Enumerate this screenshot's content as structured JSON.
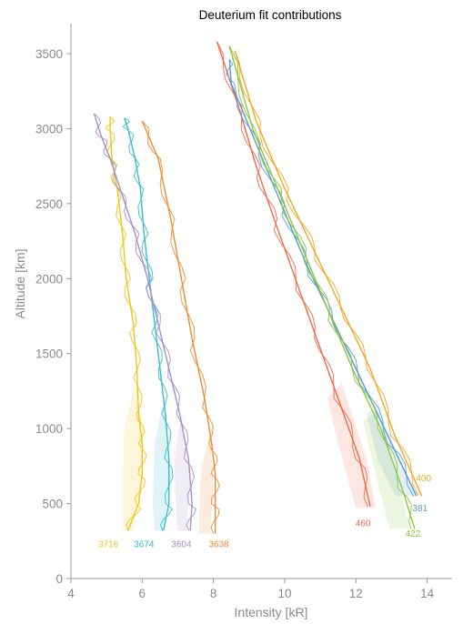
{
  "chart_data": {
    "type": "line",
    "title": "Deuterium fit contributions",
    "xlabel": "Intensity [kR]",
    "ylabel": "Altitude [km]",
    "xlim": [
      4,
      14.7
    ],
    "ylim": [
      0,
      3700
    ],
    "xticks": [
      "4",
      "6",
      "8",
      "10",
      "12",
      "14"
    ],
    "yticks": [
      "0",
      "500",
      "1000",
      "1500",
      "2000",
      "2500",
      "3000",
      "3500"
    ],
    "grid": false,
    "series": [
      {
        "name": "3716",
        "color": "#f2c418",
        "label_at": [
          5.05,
          210
        ],
        "data": [
          [
            5.6,
            320
          ],
          [
            5.9,
            500
          ],
          [
            6.0,
            700
          ],
          [
            6.0,
            900
          ],
          [
            5.9,
            1100
          ],
          [
            5.85,
            1400
          ],
          [
            5.75,
            1700
          ],
          [
            5.55,
            2000
          ],
          [
            5.45,
            2300
          ],
          [
            5.3,
            2600
          ],
          [
            5.15,
            2800
          ],
          [
            5.1,
            3000
          ],
          [
            5.1,
            3080
          ]
        ],
        "band": [
          [
            5.45,
            320
          ],
          [
            5.75,
            320
          ],
          [
            5.95,
            600
          ],
          [
            6.05,
            1000
          ],
          [
            5.8,
            1300
          ],
          [
            5.5,
            1000
          ],
          [
            5.45,
            600
          ]
        ]
      },
      {
        "name": "3674",
        "color": "#3bbad0",
        "label_at": [
          6.05,
          210
        ],
        "data": [
          [
            6.6,
            320
          ],
          [
            6.75,
            500
          ],
          [
            6.75,
            800
          ],
          [
            6.65,
            1100
          ],
          [
            6.5,
            1400
          ],
          [
            6.35,
            1700
          ],
          [
            6.2,
            2000
          ],
          [
            6.05,
            2300
          ],
          [
            5.95,
            2600
          ],
          [
            5.8,
            2800
          ],
          [
            5.6,
            3000
          ],
          [
            5.5,
            3070
          ]
        ],
        "band": [
          [
            6.35,
            320
          ],
          [
            6.6,
            320
          ],
          [
            6.8,
            700
          ],
          [
            6.6,
            1200
          ],
          [
            6.35,
            900
          ],
          [
            6.3,
            500
          ]
        ]
      },
      {
        "name": "3604",
        "color": "#a58fc6",
        "label_at": [
          7.1,
          210
        ],
        "data": [
          [
            7.35,
            320
          ],
          [
            7.4,
            500
          ],
          [
            7.3,
            800
          ],
          [
            7.05,
            1100
          ],
          [
            6.75,
            1400
          ],
          [
            6.45,
            1700
          ],
          [
            6.15,
            2000
          ],
          [
            5.8,
            2300
          ],
          [
            5.45,
            2550
          ],
          [
            5.1,
            2800
          ],
          [
            4.85,
            2950
          ],
          [
            4.65,
            3100
          ]
        ],
        "band": [
          [
            7.0,
            320
          ],
          [
            7.25,
            320
          ],
          [
            7.35,
            650
          ],
          [
            7.1,
            1100
          ],
          [
            6.9,
            800
          ],
          [
            6.95,
            450
          ]
        ]
      },
      {
        "name": "3638",
        "color": "#ef8a34",
        "label_at": [
          8.15,
          210
        ],
        "data": [
          [
            8.05,
            300
          ],
          [
            8.05,
            500
          ],
          [
            8.05,
            700
          ],
          [
            7.95,
            900
          ],
          [
            7.75,
            1200
          ],
          [
            7.4,
            1600
          ],
          [
            7.1,
            2000
          ],
          [
            6.8,
            2400
          ],
          [
            6.45,
            2800
          ],
          [
            6.0,
            3050
          ]
        ],
        "band": [
          [
            7.6,
            300
          ],
          [
            7.9,
            300
          ],
          [
            8.0,
            600
          ],
          [
            7.9,
            1000
          ],
          [
            7.65,
            700
          ],
          [
            7.6,
            450
          ]
        ]
      },
      {
        "name": "460",
        "color": "#f26b4a",
        "label_at": [
          12.2,
          350
        ],
        "data": [
          [
            12.4,
            480
          ],
          [
            12.1,
            800
          ],
          [
            11.5,
            1200
          ],
          [
            10.9,
            1600
          ],
          [
            10.3,
            2000
          ],
          [
            9.7,
            2400
          ],
          [
            9.2,
            2750
          ],
          [
            8.7,
            3150
          ],
          [
            8.1,
            3580
          ]
        ],
        "band": [
          [
            12.0,
            470
          ],
          [
            12.55,
            470
          ],
          [
            12.3,
            800
          ],
          [
            11.6,
            1300
          ],
          [
            11.2,
            1200
          ],
          [
            11.5,
            900
          ]
        ]
      },
      {
        "name": "381",
        "color": "#5b9bd5",
        "label_at": [
          13.8,
          450
        ],
        "data": [
          [
            13.7,
            550
          ],
          [
            13.0,
            900
          ],
          [
            12.2,
            1300
          ],
          [
            11.4,
            1700
          ],
          [
            10.6,
            2100
          ],
          [
            9.9,
            2500
          ],
          [
            9.2,
            2900
          ],
          [
            8.5,
            3300
          ],
          [
            8.45,
            3460
          ]
        ],
        "band": [
          [
            13.1,
            550
          ],
          [
            13.7,
            550
          ],
          [
            13.3,
            750
          ],
          [
            12.6,
            1150
          ],
          [
            12.3,
            1100
          ],
          [
            12.6,
            800
          ]
        ]
      },
      {
        "name": "400",
        "color": "#f5a623",
        "label_at": [
          13.9,
          650
        ],
        "data": [
          [
            13.85,
            550
          ],
          [
            13.1,
            950
          ],
          [
            12.4,
            1400
          ],
          [
            11.6,
            1800
          ],
          [
            10.8,
            2200
          ],
          [
            10.0,
            2600
          ],
          [
            9.2,
            3050
          ],
          [
            8.6,
            3520
          ]
        ],
        "band": []
      },
      {
        "name": "422",
        "color": "#8cc63f",
        "label_at": [
          13.6,
          280
        ],
        "data": [
          [
            13.65,
            330
          ],
          [
            13.3,
            600
          ],
          [
            12.7,
            1000
          ],
          [
            11.9,
            1400
          ],
          [
            11.2,
            1800
          ],
          [
            10.5,
            2200
          ],
          [
            9.8,
            2600
          ],
          [
            9.1,
            3000
          ],
          [
            8.45,
            3550
          ]
        ],
        "band": [
          [
            12.95,
            330
          ],
          [
            13.5,
            330
          ],
          [
            13.2,
            650
          ],
          [
            12.5,
            1100
          ],
          [
            12.2,
            1050
          ],
          [
            12.6,
            650
          ]
        ]
      }
    ]
  }
}
